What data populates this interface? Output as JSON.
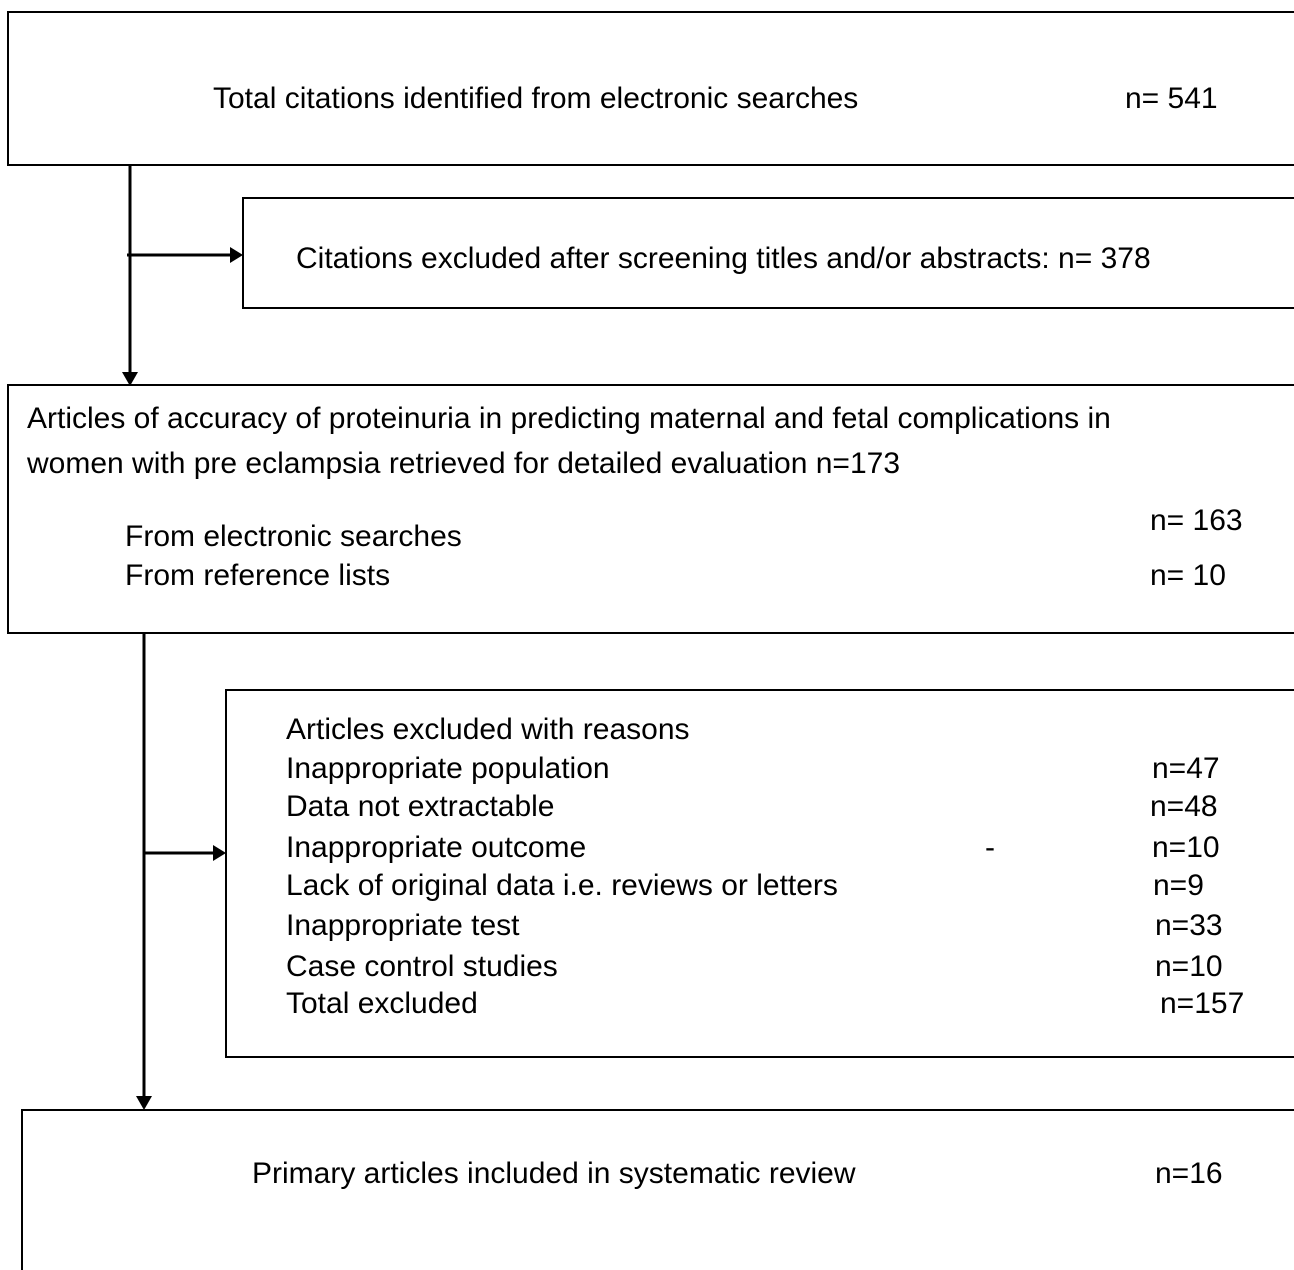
{
  "nodes": [
    {
      "label": "Total citations identified from electronic searches",
      "count": "n= 541"
    },
    {
      "label": "Citations excluded after screening titles and/or abstracts: n= 378"
    },
    {
      "lines": [
        "Articles of accuracy of proteinuria in predicting maternal and fetal complications in",
        "women with pre eclampsia retrieved for detailed evaluation n=173"
      ],
      "rows": [
        {
          "label": "From electronic searches",
          "count": "n= 163"
        },
        {
          "label": "From reference lists",
          "count": "n= 10"
        }
      ]
    },
    {
      "title": "Articles excluded with reasons",
      "rows": [
        {
          "label": "Inappropriate population",
          "count": "n=47"
        },
        {
          "label": "Data not extractable",
          "count": "n=48"
        },
        {
          "label": "Inappropriate outcome",
          "mark": "-",
          "count": "n=10"
        },
        {
          "label": "Lack of original data i.e. reviews or letters",
          "count": "n=9"
        },
        {
          "label": "Inappropriate test",
          "count": "n=33"
        },
        {
          "label": "Case control studies",
          "count": "n=10"
        },
        {
          "label": "Total excluded",
          "count": "n=157"
        }
      ]
    },
    {
      "label": "Primary articles included in systematic review",
      "count": "n=16"
    }
  ]
}
